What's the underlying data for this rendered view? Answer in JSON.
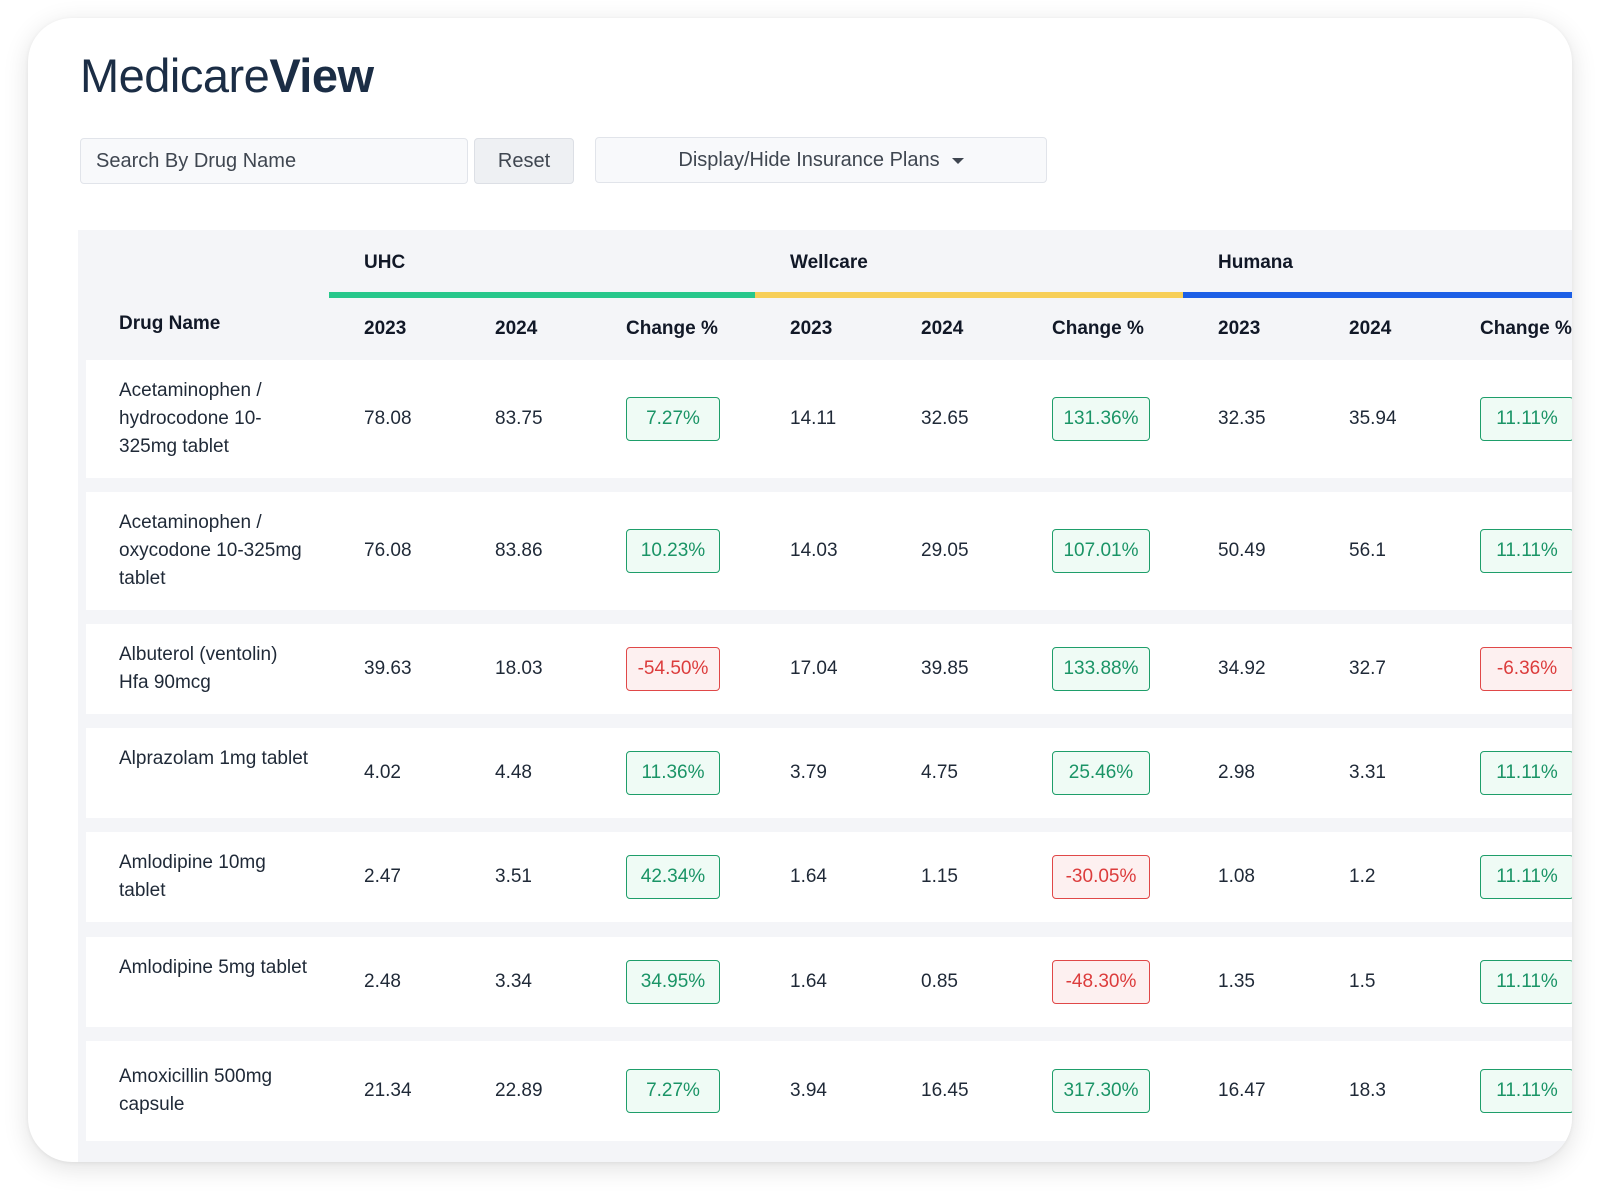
{
  "brand": {
    "light": "Medicare",
    "bold": "View"
  },
  "controls": {
    "search_placeholder": "Search By Drug Name",
    "reset_label": "Reset",
    "plans_label": "Display/Hide Insurance Plans"
  },
  "table": {
    "drug_header": "Drug Name",
    "groups": [
      {
        "name": "UHC",
        "color": "#27c78b"
      },
      {
        "name": "Wellcare",
        "color": "#f7cf58"
      },
      {
        "name": "Humana",
        "color": "#1c5fe6"
      }
    ],
    "sub_headers": [
      "2023",
      "2024",
      "Change %"
    ],
    "rows": [
      {
        "drug": "Acetaminophen / hydrocodone 10-325mg tablet",
        "uhc": [
          "78.08",
          "83.75",
          "7.27%"
        ],
        "wellcare": [
          "14.11",
          "32.65",
          "131.36%"
        ],
        "humana": [
          "32.35",
          "35.94",
          "11.11%"
        ]
      },
      {
        "drug": "Acetaminophen / oxycodone 10-325mg tablet",
        "uhc": [
          "76.08",
          "83.86",
          "10.23%"
        ],
        "wellcare": [
          "14.03",
          "29.05",
          "107.01%"
        ],
        "humana": [
          "50.49",
          "56.1",
          "11.11%"
        ]
      },
      {
        "drug": "Albuterol (ventolin) Hfa 90mcg",
        "uhc": [
          "39.63",
          "18.03",
          "-54.50%"
        ],
        "wellcare": [
          "17.04",
          "39.85",
          "133.88%"
        ],
        "humana": [
          "34.92",
          "32.7",
          "-6.36%"
        ]
      },
      {
        "drug": "Alprazolam 1mg tablet",
        "uhc": [
          "4.02",
          "4.48",
          "11.36%"
        ],
        "wellcare": [
          "3.79",
          "4.75",
          "25.46%"
        ],
        "humana": [
          "2.98",
          "3.31",
          "11.11%"
        ]
      },
      {
        "drug": "Amlodipine 10mg tablet",
        "uhc": [
          "2.47",
          "3.51",
          "42.34%"
        ],
        "wellcare": [
          "1.64",
          "1.15",
          "-30.05%"
        ],
        "humana": [
          "1.08",
          "1.2",
          "11.11%"
        ]
      },
      {
        "drug": "Amlodipine 5mg tablet",
        "uhc": [
          "2.48",
          "3.34",
          "34.95%"
        ],
        "wellcare": [
          "1.64",
          "0.85",
          "-48.30%"
        ],
        "humana": [
          "1.35",
          "1.5",
          "11.11%"
        ]
      },
      {
        "drug": "Amoxicillin 500mg capsule",
        "uhc": [
          "21.34",
          "22.89",
          "7.27%"
        ],
        "wellcare": [
          "3.94",
          "16.45",
          "317.30%"
        ],
        "humana": [
          "16.47",
          "18.3",
          "11.11%"
        ]
      }
    ]
  }
}
